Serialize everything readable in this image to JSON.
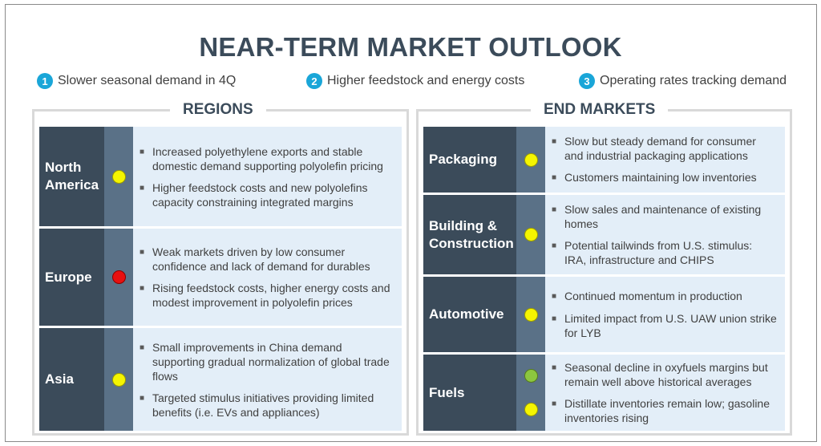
{
  "title": "NEAR-TERM MARKET OUTLOOK",
  "points": [
    {
      "num": "1",
      "text": "Slower seasonal demand in 4Q"
    },
    {
      "num": "2",
      "text": "Higher feedstock and energy costs"
    },
    {
      "num": "3",
      "text": "Operating rates tracking demand"
    }
  ],
  "regions": {
    "heading": "REGIONS",
    "rows": [
      {
        "label_line1": "North",
        "label_line2": "America",
        "status": [
          "yellow"
        ],
        "bullets": [
          "Increased polyethylene exports and stable domestic demand supporting polyolefin pricing",
          "Higher feedstock costs and new polyolefins capacity constraining integrated margins"
        ]
      },
      {
        "label_line1": "Europe",
        "label_line2": "",
        "status": [
          "red"
        ],
        "bullets": [
          "Weak markets driven by low consumer confidence and lack of demand for durables",
          "Rising feedstock costs, higher energy costs and modest improvement in polyolefin prices"
        ]
      },
      {
        "label_line1": "Asia",
        "label_line2": "",
        "status": [
          "yellow"
        ],
        "bullets": [
          "Small improvements in China demand supporting gradual normalization of global trade flows",
          "Targeted stimulus initiatives providing limited benefits (i.e. EVs and appliances)"
        ]
      }
    ]
  },
  "end_markets": {
    "heading": "END MARKETS",
    "rows": [
      {
        "label_line1": "Packaging",
        "label_line2": "",
        "status": [
          "yellow"
        ],
        "bullets": [
          "Slow but steady demand for consumer and industrial packaging applications",
          "Customers maintaining low inventories"
        ]
      },
      {
        "label_line1": "Building &",
        "label_line2": "Construction",
        "status": [
          "yellow"
        ],
        "bullets": [
          "Slow sales and maintenance of existing homes",
          "Potential tailwinds from U.S. stimulus: IRA, infrastructure and CHIPS"
        ]
      },
      {
        "label_line1": "Automotive",
        "label_line2": "",
        "status": [
          "yellow"
        ],
        "bullets": [
          "Continued momentum in production",
          "Limited impact from U.S. UAW union strike for LYB"
        ]
      },
      {
        "label_line1": "Fuels",
        "label_line2": "",
        "status": [
          "green",
          "yellow"
        ],
        "bullets": [
          "Seasonal decline in oxyfuels margins but remain well above historical averages",
          "Distillate inventories remain low; gasoline inventories rising"
        ]
      }
    ]
  }
}
